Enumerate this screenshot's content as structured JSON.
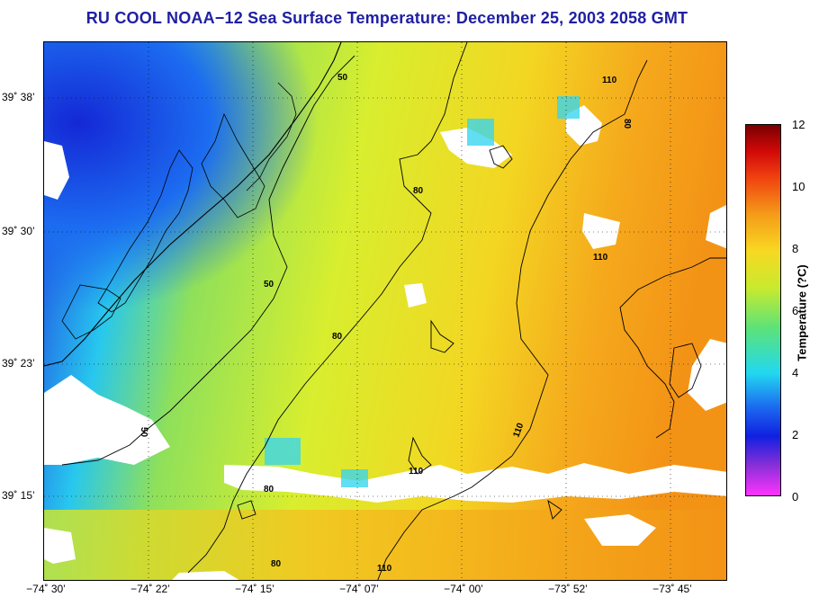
{
  "title": "RU COOL  NOAA−12  Sea Surface Temperature:  December 25, 2003 2058 GMT",
  "map": {
    "lat_labels": [
      "39˚ 38’",
      "39˚ 30’",
      "39˚ 23’",
      "39˚ 15’"
    ],
    "lon_labels": [
      "−74˚ 30’",
      "−74˚ 22’",
      "−74˚ 15’",
      "−74˚ 07’",
      "−74˚ 00’",
      "−73˚ 52’",
      "−73˚ 45’"
    ],
    "contour_labels": [
      "50",
      "50",
      "50",
      "80",
      "80",
      "80",
      "80",
      "110",
      "110",
      "110",
      "110",
      "110",
      "80"
    ]
  },
  "colorbar": {
    "label": "Temperature (?C)",
    "ticks": [
      "12",
      "10",
      "8",
      "6",
      "4",
      "2",
      "0"
    ],
    "range": [
      0,
      12
    ],
    "colors": {
      "land": "#ffffff",
      "cloud": "#ffffff",
      "cold": "#1e22d8",
      "warm": "#f7a21c"
    }
  }
}
